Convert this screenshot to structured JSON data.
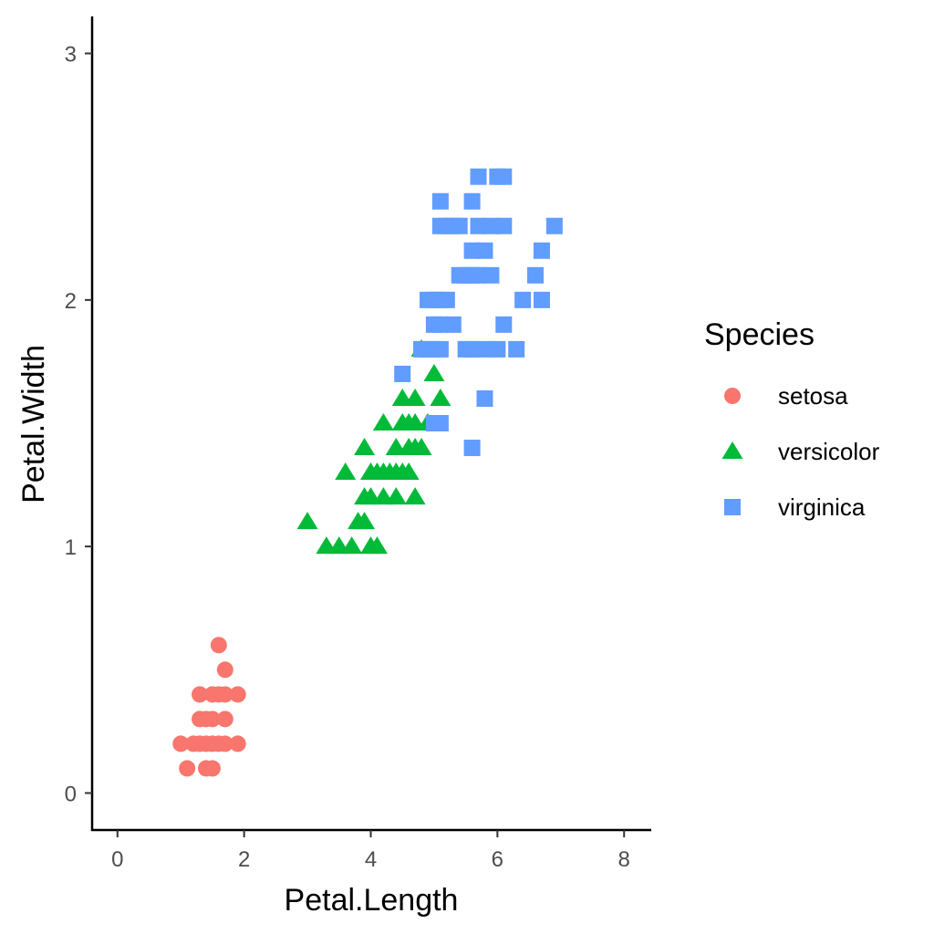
{
  "chart_data": {
    "type": "scatter",
    "title": "",
    "xlabel": "Petal.Length",
    "ylabel": "Petal.Width",
    "xlim": [
      -0.4,
      8.4
    ],
    "ylim": [
      -0.15,
      3.15
    ],
    "xticks": [
      0,
      2,
      4,
      6,
      8
    ],
    "yticks": [
      0,
      1,
      2,
      3
    ],
    "xtick_labels": [
      "0",
      "2",
      "4",
      "6",
      "8"
    ],
    "ytick_labels": [
      "0",
      "1",
      "2",
      "3"
    ],
    "grid": false,
    "legend": {
      "title": "Species",
      "position": "right"
    },
    "series": [
      {
        "name": "setosa",
        "color": "#F8766D",
        "shape": "circle",
        "points": [
          [
            1.0,
            0.2
          ],
          [
            1.1,
            0.1
          ],
          [
            1.2,
            0.2
          ],
          [
            1.3,
            0.2
          ],
          [
            1.3,
            0.3
          ],
          [
            1.3,
            0.4
          ],
          [
            1.4,
            0.1
          ],
          [
            1.4,
            0.2
          ],
          [
            1.4,
            0.3
          ],
          [
            1.5,
            0.1
          ],
          [
            1.5,
            0.2
          ],
          [
            1.5,
            0.3
          ],
          [
            1.5,
            0.4
          ],
          [
            1.6,
            0.2
          ],
          [
            1.6,
            0.4
          ],
          [
            1.6,
            0.6
          ],
          [
            1.7,
            0.2
          ],
          [
            1.7,
            0.3
          ],
          [
            1.7,
            0.4
          ],
          [
            1.7,
            0.5
          ],
          [
            1.9,
            0.2
          ],
          [
            1.9,
            0.4
          ]
        ]
      },
      {
        "name": "versicolor",
        "color": "#00BA38",
        "shape": "triangle",
        "points": [
          [
            3.0,
            1.1
          ],
          [
            3.3,
            1.0
          ],
          [
            3.5,
            1.0
          ],
          [
            3.6,
            1.3
          ],
          [
            3.7,
            1.0
          ],
          [
            3.8,
            1.1
          ],
          [
            3.9,
            1.1
          ],
          [
            3.9,
            1.2
          ],
          [
            3.9,
            1.4
          ],
          [
            4.0,
            1.0
          ],
          [
            4.0,
            1.2
          ],
          [
            4.0,
            1.3
          ],
          [
            4.1,
            1.0
          ],
          [
            4.1,
            1.3
          ],
          [
            4.2,
            1.2
          ],
          [
            4.2,
            1.3
          ],
          [
            4.2,
            1.5
          ],
          [
            4.3,
            1.3
          ],
          [
            4.4,
            1.2
          ],
          [
            4.4,
            1.3
          ],
          [
            4.4,
            1.4
          ],
          [
            4.5,
            1.3
          ],
          [
            4.5,
            1.5
          ],
          [
            4.5,
            1.6
          ],
          [
            4.6,
            1.3
          ],
          [
            4.6,
            1.4
          ],
          [
            4.6,
            1.5
          ],
          [
            4.7,
            1.2
          ],
          [
            4.7,
            1.4
          ],
          [
            4.7,
            1.5
          ],
          [
            4.7,
            1.6
          ],
          [
            4.8,
            1.4
          ],
          [
            4.8,
            1.8
          ],
          [
            4.9,
            1.5
          ],
          [
            5.0,
            1.7
          ],
          [
            5.1,
            1.6
          ]
        ]
      },
      {
        "name": "virginica",
        "color": "#619CFF",
        "shape": "square",
        "points": [
          [
            4.5,
            1.7
          ],
          [
            4.8,
            1.8
          ],
          [
            4.9,
            1.8
          ],
          [
            4.9,
            2.0
          ],
          [
            5.0,
            1.5
          ],
          [
            5.0,
            1.8
          ],
          [
            5.0,
            2.0
          ],
          [
            5.0,
            1.9
          ],
          [
            5.1,
            1.5
          ],
          [
            5.1,
            1.8
          ],
          [
            5.1,
            1.9
          ],
          [
            5.1,
            2.0
          ],
          [
            5.1,
            2.3
          ],
          [
            5.1,
            2.4
          ],
          [
            5.2,
            2.0
          ],
          [
            5.2,
            2.3
          ],
          [
            5.3,
            1.9
          ],
          [
            5.3,
            2.3
          ],
          [
            5.4,
            2.1
          ],
          [
            5.4,
            2.3
          ],
          [
            5.5,
            1.8
          ],
          [
            5.5,
            2.1
          ],
          [
            5.6,
            1.4
          ],
          [
            5.6,
            1.8
          ],
          [
            5.6,
            2.1
          ],
          [
            5.6,
            2.2
          ],
          [
            5.6,
            2.4
          ],
          [
            5.7,
            2.1
          ],
          [
            5.7,
            2.3
          ],
          [
            5.7,
            2.5
          ],
          [
            5.8,
            1.6
          ],
          [
            5.8,
            1.8
          ],
          [
            5.8,
            2.2
          ],
          [
            5.9,
            2.1
          ],
          [
            5.9,
            2.3
          ],
          [
            6.0,
            1.8
          ],
          [
            6.0,
            2.5
          ],
          [
            6.1,
            1.9
          ],
          [
            6.1,
            2.3
          ],
          [
            6.1,
            2.5
          ],
          [
            6.3,
            1.8
          ],
          [
            6.4,
            2.0
          ],
          [
            6.6,
            2.1
          ],
          [
            6.7,
            2.0
          ],
          [
            6.7,
            2.2
          ],
          [
            6.9,
            2.3
          ]
        ]
      }
    ]
  }
}
